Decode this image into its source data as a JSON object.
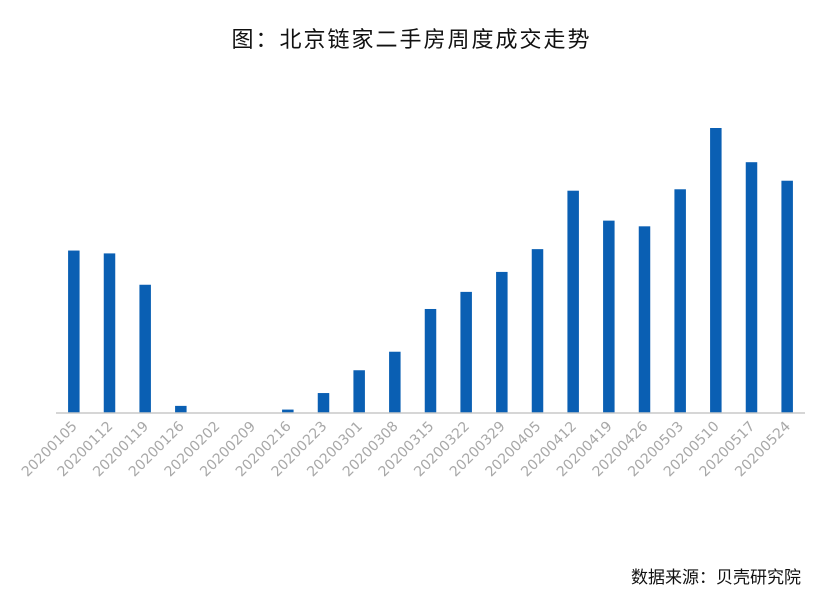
{
  "title": "图：北京链家二手房周度成交走势",
  "source": "数据来源：贝壳研究院",
  "colors": {
    "bar": "#0a5fb3",
    "axis": "#c8c8c8",
    "tick_label": "#a8a8a8"
  },
  "chart_data": {
    "type": "bar",
    "title": "图：北京链家二手房周度成交走势",
    "xlabel": "",
    "ylabel": "",
    "grid": false,
    "legend": "none",
    "y_axis_visible": false,
    "ylim": [
      0,
      100
    ],
    "categories": [
      "20200105",
      "20200112",
      "20200119",
      "20200126",
      "20200202",
      "20200209",
      "20200216",
      "20200223",
      "20200301",
      "20200308",
      "20200315",
      "20200322",
      "20200329",
      "20200405",
      "20200412",
      "20200419",
      "20200426",
      "20200503",
      "20200510",
      "20200517",
      "20200524"
    ],
    "values": [
      57,
      56,
      45,
      2.5,
      0,
      0,
      1.2,
      7,
      15,
      21.5,
      36.5,
      42.5,
      49.5,
      57.5,
      78,
      67.5,
      65.5,
      78.5,
      100,
      88,
      81.5
    ]
  }
}
